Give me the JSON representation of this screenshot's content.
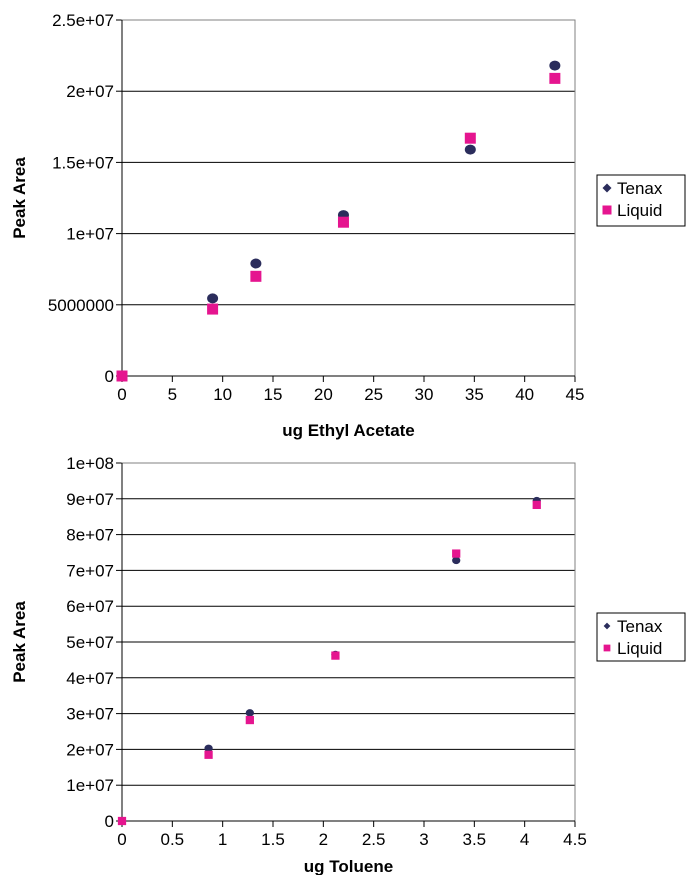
{
  "chart_data": [
    {
      "type": "scatter",
      "title": "",
      "xlabel": "ug Ethyl Acetate",
      "ylabel": "Peak Area",
      "xlim": [
        0,
        45
      ],
      "ylim": [
        0,
        25000000
      ],
      "x_ticks": [
        "0",
        "5",
        "10",
        "15",
        "20",
        "25",
        "30",
        "35",
        "40",
        "45"
      ],
      "y_ticks": [
        "0",
        "5000000",
        "1e+07",
        "1.5e+07",
        "2e+07",
        "2.5e+07"
      ],
      "grid": "horizontal",
      "legend_position": "right",
      "series": [
        {
          "name": "Tenax",
          "marker": "diamond",
          "color": "#2b2d5c",
          "points": [
            [
              0,
              0
            ],
            [
              9,
              5450000
            ],
            [
              13.3,
              7900000
            ],
            [
              22,
              11300000
            ],
            [
              34.6,
              15900000
            ],
            [
              43,
              21800000
            ]
          ]
        },
        {
          "name": "Liquid",
          "marker": "square",
          "color": "#e5158f",
          "points": [
            [
              0,
              0
            ],
            [
              9,
              4700000
            ],
            [
              13.3,
              7000000
            ],
            [
              22,
              10800000
            ],
            [
              34.6,
              16700000
            ],
            [
              43,
              20900000
            ]
          ]
        }
      ]
    },
    {
      "type": "scatter",
      "title": "",
      "xlabel": "ug Toluene",
      "ylabel": "Peak Area",
      "xlim": [
        0,
        4.5
      ],
      "ylim": [
        0,
        100000000
      ],
      "x_ticks": [
        "0",
        "0.5",
        "1",
        "1.5",
        "2",
        "2.5",
        "3",
        "3.5",
        "4",
        "4.5"
      ],
      "y_ticks": [
        "0",
        "1e+07",
        "2e+07",
        "3e+07",
        "4e+07",
        "5e+07",
        "6e+07",
        "7e+07",
        "8e+07",
        "9e+07",
        "1e+08"
      ],
      "grid": "horizontal",
      "legend_position": "right",
      "series": [
        {
          "name": "Tenax",
          "marker": "diamond",
          "color": "#2b2d5c",
          "points": [
            [
              0,
              0
            ],
            [
              0.86,
              20300000
            ],
            [
              1.27,
              30200000
            ],
            [
              2.12,
              46500000
            ],
            [
              3.32,
              72800000
            ],
            [
              4.12,
              89500000
            ]
          ]
        },
        {
          "name": "Liquid",
          "marker": "square",
          "color": "#e5158f",
          "points": [
            [
              0,
              0
            ],
            [
              0.86,
              18500000
            ],
            [
              1.27,
              28200000
            ],
            [
              2.12,
              46200000
            ],
            [
              3.32,
              74700000
            ],
            [
              4.12,
              88300000
            ]
          ]
        }
      ]
    }
  ]
}
